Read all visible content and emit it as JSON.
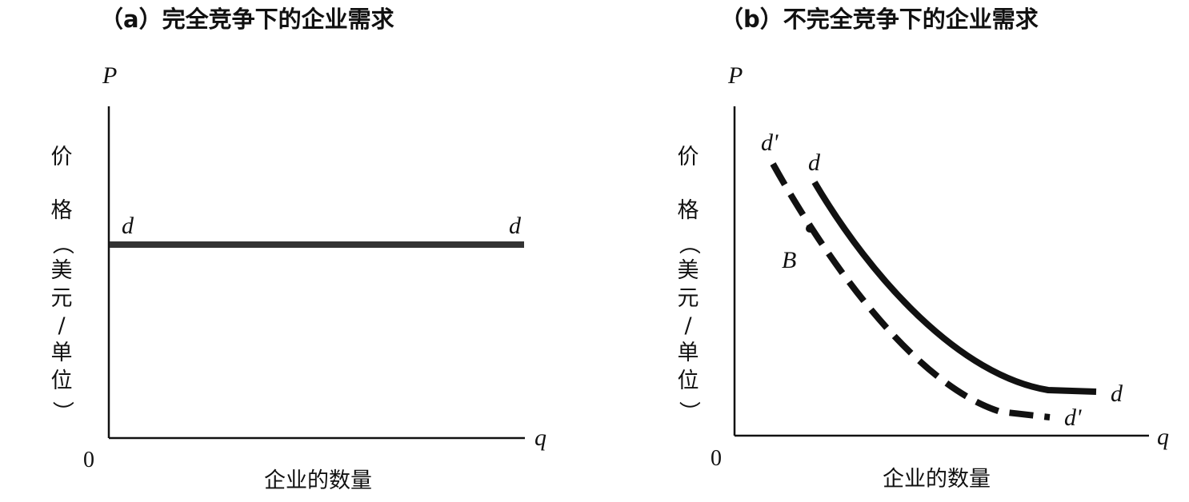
{
  "chart_data": [
    {
      "type": "line",
      "title": "（a）完全竞争下的企业需求",
      "y_axis_symbol": "P",
      "x_axis_symbol": "q",
      "origin_label": "0",
      "ylabel_chars": [
        "价",
        "格",
        "（",
        "美",
        "元",
        "/",
        "单",
        "位",
        "）"
      ],
      "xlabel": "企业的数量",
      "curves": [
        {
          "name": "d",
          "shape": "horizontal",
          "style": "solid",
          "start_label": "d",
          "end_label": "d"
        }
      ]
    },
    {
      "type": "line",
      "title": "（b）不完全竞争下的企业需求",
      "y_axis_symbol": "P",
      "x_axis_symbol": "q",
      "origin_label": "0",
      "ylabel_chars": [
        "价",
        "格",
        "（",
        "美",
        "元",
        "/",
        "单",
        "位",
        "）"
      ],
      "xlabel": "企业的数量",
      "curves": [
        {
          "name": "d",
          "shape": "downward-sloping convex",
          "style": "solid",
          "start_label": "d",
          "end_label": "d"
        },
        {
          "name": "d'",
          "shape": "downward-sloping convex",
          "style": "dashed",
          "start_label": "d'",
          "end_label": "d'"
        }
      ],
      "points": [
        {
          "label": "B",
          "on_curve": "d'"
        }
      ]
    }
  ]
}
